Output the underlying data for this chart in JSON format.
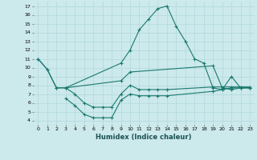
{
  "xlabel": "Humidex (Indice chaleur)",
  "xlim": [
    -0.5,
    23.5
  ],
  "ylim": [
    3.5,
    17.5
  ],
  "yticks": [
    4,
    5,
    6,
    7,
    8,
    9,
    10,
    11,
    12,
    13,
    14,
    15,
    16,
    17
  ],
  "xticks": [
    0,
    1,
    2,
    3,
    4,
    5,
    6,
    7,
    8,
    9,
    10,
    11,
    12,
    13,
    14,
    15,
    16,
    17,
    18,
    19,
    20,
    21,
    22,
    23
  ],
  "xtick_labels": [
    "0",
    "1",
    "2",
    "3",
    "4",
    "5",
    "6",
    "7",
    "8",
    "9",
    "10",
    "11",
    "12",
    "13",
    "14",
    "15",
    "16",
    "17",
    "18",
    "19",
    "20",
    "21",
    "22",
    "23"
  ],
  "bg_color": "#cce9ec",
  "line_color": "#1a7a6e",
  "grid_color": "#b0d8dc",
  "series": [
    {
      "x": [
        0,
        1,
        2,
        3,
        9,
        10,
        11,
        12,
        13,
        14,
        15,
        16,
        17,
        18,
        19,
        20,
        21,
        22,
        23
      ],
      "y": [
        11,
        9.8,
        7.7,
        7.7,
        10.5,
        12.0,
        14.3,
        15.5,
        16.7,
        17.0,
        14.7,
        13.0,
        11.0,
        10.5,
        7.7,
        7.5,
        9.0,
        7.7,
        7.7
      ]
    },
    {
      "x": [
        0,
        1,
        2,
        3,
        9,
        10,
        19,
        20,
        21,
        22,
        23
      ],
      "y": [
        11,
        9.8,
        7.7,
        7.7,
        8.5,
        9.5,
        10.2,
        7.7,
        7.5,
        7.7,
        7.7
      ]
    },
    {
      "x": [
        3,
        4,
        5,
        6,
        7,
        8,
        9,
        10,
        11,
        12,
        13,
        14,
        19,
        20,
        21,
        22,
        23
      ],
      "y": [
        6.5,
        5.7,
        4.7,
        4.3,
        4.3,
        4.3,
        6.3,
        7.0,
        6.8,
        6.8,
        6.8,
        6.8,
        7.3,
        7.5,
        7.7,
        7.7,
        7.7
      ]
    },
    {
      "x": [
        3,
        4,
        5,
        6,
        7,
        8,
        9,
        10,
        11,
        12,
        13,
        14,
        19,
        20,
        21,
        22,
        23
      ],
      "y": [
        7.7,
        7.0,
        6.0,
        5.5,
        5.5,
        5.5,
        7.0,
        8.0,
        7.5,
        7.5,
        7.5,
        7.5,
        7.8,
        7.8,
        7.8,
        7.8,
        7.8
      ]
    }
  ]
}
